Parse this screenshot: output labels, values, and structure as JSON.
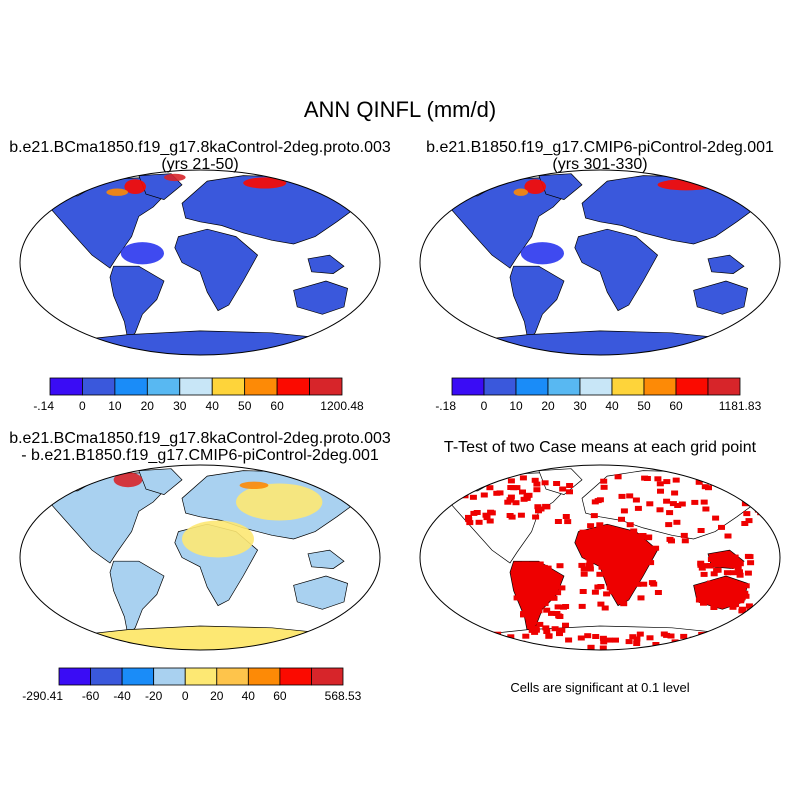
{
  "figure_title": "ANN QINFL (mm/d)",
  "colors": {
    "ocean": "#ffffff",
    "panel1_base": "#3a58dc",
    "sahara": "#2a36ee",
    "diff_ocean_land": "#a9d1f0",
    "diff_antarctica": "#fde873",
    "significant": "#ee0000",
    "coast": "#000000"
  },
  "chart_data": [
    {
      "type": "heatmap",
      "map_projection": "robinson",
      "title_line1": "b.e21.BCma1850.f19_g17.8kaControl-2deg.proto.003",
      "title_line2": "(yrs 21-50)",
      "colorbar": {
        "colors": [
          "#3a0cf5",
          "#3a58dc",
          "#1a8cf8",
          "#58b8f2",
          "#c8e6f7",
          "#fed43a",
          "#fd8a06",
          "#fb0a00",
          "#d7252a"
        ],
        "ticks": [
          "-.14",
          "0",
          "10",
          "20",
          "30",
          "40",
          "50",
          "60",
          "1200.48"
        ]
      }
    },
    {
      "type": "heatmap",
      "map_projection": "robinson",
      "title_line1": "b.e21.B1850.f19_g17.CMIP6-piControl-2deg.001",
      "title_line2": "(yrs 301-330)",
      "colorbar": {
        "colors": [
          "#3a0cf5",
          "#3a58dc",
          "#1a8cf8",
          "#58b8f2",
          "#c8e6f7",
          "#fed43a",
          "#fd8a06",
          "#fb0a00",
          "#d7252a"
        ],
        "ticks": [
          "-.18",
          "0",
          "10",
          "20",
          "30",
          "40",
          "50",
          "60",
          "1181.83"
        ]
      }
    },
    {
      "type": "heatmap",
      "map_projection": "robinson",
      "title_line1": "b.e21.BCma1850.f19_g17.8kaControl-2deg.proto.003",
      "title_line2": "- b.e21.B1850.f19_g17.CMIP6-piControl-2deg.001",
      "colorbar": {
        "colors": [
          "#3a0cf5",
          "#3a58dc",
          "#1a8cf8",
          "#a9d1f0",
          "#fde873",
          "#fec44b",
          "#fd8a06",
          "#fb0a00",
          "#d7252a"
        ],
        "ticks": [
          "-290.41",
          "-60",
          "-40",
          "-20",
          "0",
          "20",
          "40",
          "60",
          "568.53"
        ]
      }
    },
    {
      "type": "heatmap",
      "map_projection": "robinson",
      "title_line1": "T-Test of two Case means at each grid point",
      "note": "Cells are significant at 0.1 level"
    }
  ]
}
